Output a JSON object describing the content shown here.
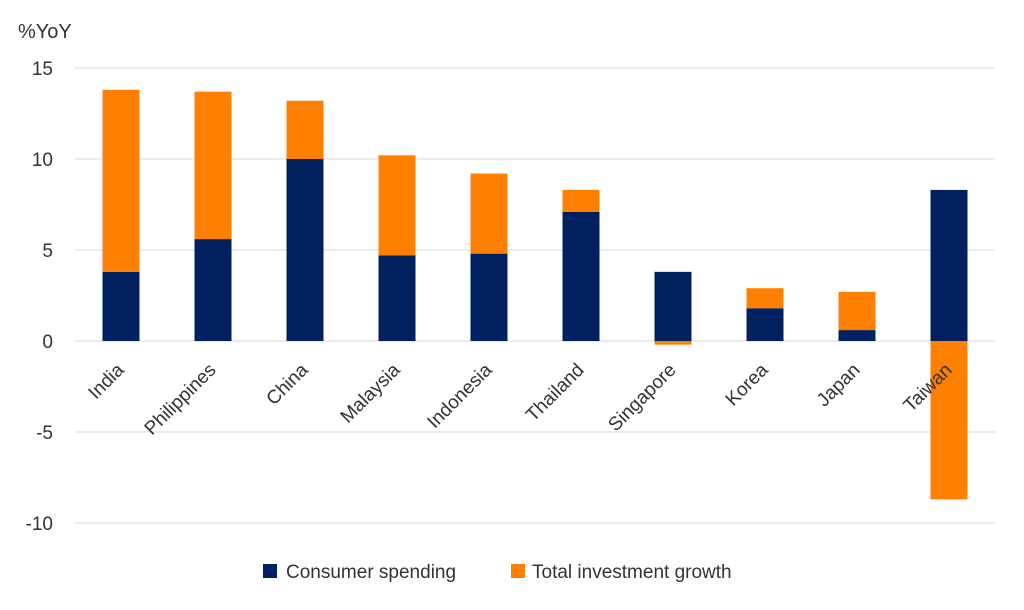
{
  "chart_data": {
    "type": "bar",
    "stacked": true,
    "ylabel": "%YoY",
    "ylim": [
      -10,
      15
    ],
    "yticks": [
      15,
      10,
      5,
      0,
      -5,
      -10
    ],
    "grid": true,
    "legend_position": "bottom",
    "categories": [
      "India",
      "Philippines",
      "China",
      "Malaysia",
      "Indonesia",
      "Thailand",
      "Singapore",
      "Korea",
      "Japan",
      "Taiwan"
    ],
    "series": [
      {
        "name": "Consumer spending",
        "color": "#002060",
        "values": [
          3.8,
          5.6,
          10.0,
          4.7,
          4.8,
          7.1,
          3.8,
          1.8,
          0.6,
          8.3
        ]
      },
      {
        "name": "Total investment growth",
        "color": "#FF7F00",
        "values": [
          10.0,
          8.1,
          3.2,
          5.5,
          4.4,
          1.2,
          -0.2,
          1.1,
          2.1,
          -8.7
        ]
      }
    ]
  }
}
